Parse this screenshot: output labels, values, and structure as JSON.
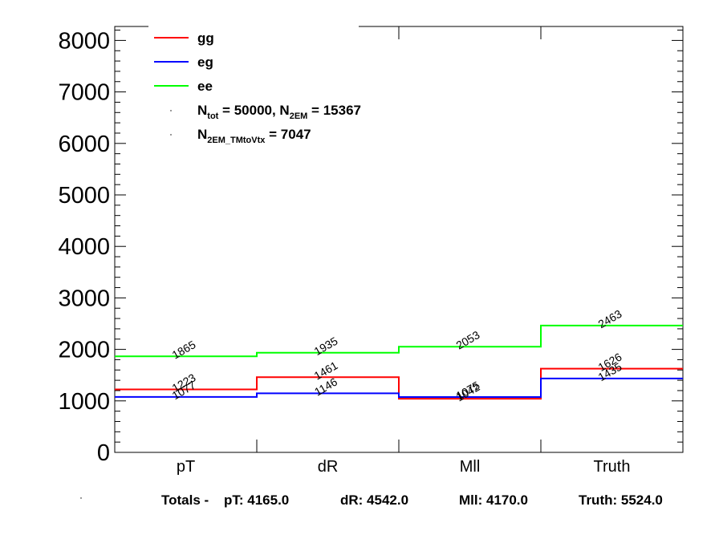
{
  "chart_data": {
    "type": "line",
    "categories": [
      "pT",
      "dR",
      "Mll",
      "Truth"
    ],
    "ylim": [
      0,
      8300
    ],
    "yticks": [
      "0",
      "1000",
      "2000",
      "3000",
      "4000",
      "5000",
      "6000",
      "7000",
      "8000"
    ],
    "yticks_values": [
      0,
      1000,
      2000,
      3000,
      4000,
      5000,
      6000,
      7000,
      8000
    ],
    "series": [
      {
        "name": "gg",
        "color": "#ff0000",
        "values": [
          1223,
          1461,
          1042,
          1626
        ]
      },
      {
        "name": "eg",
        "color": "#0000ff",
        "values": [
          1077,
          1146,
          1075,
          1435
        ]
      },
      {
        "name": "ee",
        "color": "#00ff00",
        "values": [
          1865,
          1935,
          2053,
          2463
        ]
      }
    ],
    "annotations": {
      "ntot_prefix": "N",
      "ntot_sub": "tot",
      "ntot_mid": " = 50000, N",
      "n2em_sub": "2EM",
      "n2em_val": " = 15367",
      "n2emtm_prefix": "N",
      "n2emtm_sub": "2EM_TMtoVtx",
      "n2emtm_val": "  = 7047"
    },
    "totals": {
      "prefix": "Totals -",
      "pt": "pT: 4165.0",
      "dr": "dR: 4542.0",
      "mll": "Mll: 4170.0",
      "truth": "Truth: 5524.0"
    },
    "grid": false,
    "legend_position": "top-left"
  }
}
